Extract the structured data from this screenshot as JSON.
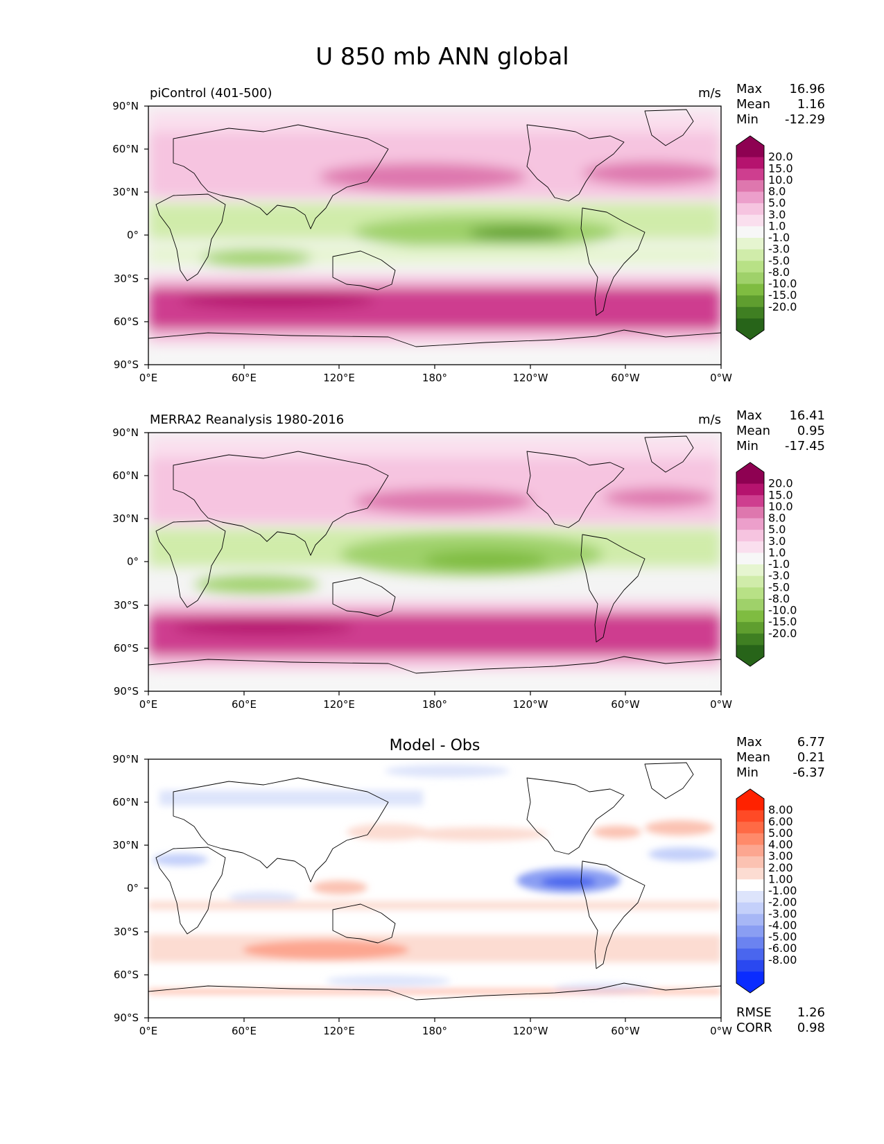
{
  "figure_title": "U 850 mb ANN global",
  "lat_ticks": [
    "90°N",
    "60°N",
    "30°N",
    "0°",
    "30°S",
    "60°S",
    "90°S"
  ],
  "lon_ticks": [
    "0°E",
    "60°E",
    "120°E",
    "180°",
    "120°W",
    "60°W",
    "0°W"
  ],
  "panels": [
    {
      "title": "piControl (401-500)",
      "title_position": "left",
      "units": "m/s",
      "stats": [
        {
          "label": "Max",
          "value": "16.96"
        },
        {
          "label": "Mean",
          "value": "1.16"
        },
        {
          "label": "Min",
          "value": "-12.29"
        }
      ],
      "colorbar_labels": [
        "20.0",
        "15.0",
        "10.0",
        "8.0",
        "5.0",
        "3.0",
        "1.0",
        "-1.0",
        "-3.0",
        "-5.0",
        "-8.0",
        "-10.0",
        "-15.0",
        "-20.0"
      ],
      "colorbar_colors": [
        "#8e0152",
        "#b5136e",
        "#ce3e8f",
        "#de77ae",
        "#ec9fcb",
        "#f6c4e0",
        "#fadfee",
        "#f7f7f7",
        "#e6f5d0",
        "#d0ecaa",
        "#b8e186",
        "#9fd16a",
        "#7fbc41",
        "#5f9e2f",
        "#3f7f22",
        "#276419"
      ],
      "colormap": "PiYG"
    },
    {
      "title": "MERRA2 Reanalysis 1980-2016",
      "title_position": "left",
      "units": "m/s",
      "stats": [
        {
          "label": "Max",
          "value": "16.41"
        },
        {
          "label": "Mean",
          "value": "0.95"
        },
        {
          "label": "Min",
          "value": "-17.45"
        }
      ],
      "colorbar_labels": [
        "20.0",
        "15.0",
        "10.0",
        "8.0",
        "5.0",
        "3.0",
        "1.0",
        "-1.0",
        "-3.0",
        "-5.0",
        "-8.0",
        "-10.0",
        "-15.0",
        "-20.0"
      ],
      "colorbar_colors": [
        "#8e0152",
        "#b5136e",
        "#ce3e8f",
        "#de77ae",
        "#ec9fcb",
        "#f6c4e0",
        "#fadfee",
        "#f7f7f7",
        "#e6f5d0",
        "#d0ecaa",
        "#b8e186",
        "#9fd16a",
        "#7fbc41",
        "#5f9e2f",
        "#3f7f22",
        "#276419"
      ],
      "colormap": "PiYG"
    },
    {
      "title": "Model - Obs",
      "title_position": "center",
      "units": "",
      "stats": [
        {
          "label": "Max",
          "value": "6.77"
        },
        {
          "label": "Mean",
          "value": "0.21"
        },
        {
          "label": "Min",
          "value": "-6.37"
        }
      ],
      "extra_stats": [
        {
          "label": "RMSE",
          "value": "1.26"
        },
        {
          "label": "CORR",
          "value": "0.98"
        }
      ],
      "colorbar_labels": [
        "8.00",
        "6.00",
        "5.00",
        "4.00",
        "3.00",
        "2.00",
        "1.00",
        "-1.00",
        "-2.00",
        "-3.00",
        "-4.00",
        "-5.00",
        "-6.00",
        "-8.00"
      ],
      "colorbar_colors": [
        "#ff2200",
        "#ff4a26",
        "#ff6a45",
        "#ff8a6a",
        "#fca690",
        "#fbc2b2",
        "#fcdcd2",
        "#ffffff",
        "#dde4fb",
        "#c4d0fa",
        "#a7b7f6",
        "#8a9ef3",
        "#6b83f0",
        "#4a66ee",
        "#2a48f0",
        "#0a2cff"
      ],
      "colormap": "diverging red-blue"
    }
  ]
}
